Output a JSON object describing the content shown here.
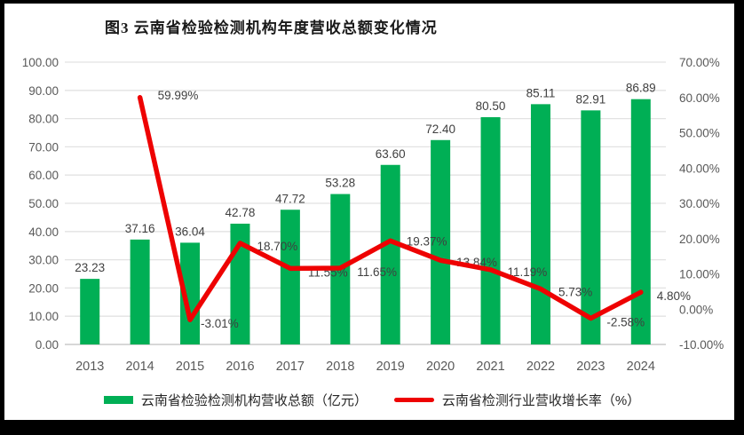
{
  "title": "图3  云南省检验检测机构年度营收总额变化情况",
  "legend": [
    {
      "swatch": "bar",
      "label": "云南省检验检测机构营收总额（亿元）"
    },
    {
      "swatch": "line",
      "label": "云南省检测行业营收增长率（%）"
    }
  ],
  "colors": {
    "bar_green": "#00AF55",
    "line_red": "#EE0202",
    "gridline": "#E2E2E2",
    "baseline": "#BFBFBF",
    "axis_text": "#595959",
    "data_label_text": "#3f3f3f",
    "frame": "#000000",
    "background": "#ffffff"
  },
  "chart_data": {
    "type": "bar",
    "subtype": "bar-line-combo",
    "title": "图3 云南省检验检测机构年度营收总额变化情况",
    "categories": [
      "2013",
      "2014",
      "2015",
      "2016",
      "2017",
      "2018",
      "2019",
      "2020",
      "2021",
      "2022",
      "2023",
      "2024"
    ],
    "series": [
      {
        "name": "云南省检验检测机构营收总额（亿元）",
        "type": "bar",
        "axis": "left",
        "values": [
          23.23,
          37.16,
          36.04,
          42.78,
          47.72,
          53.28,
          63.6,
          72.4,
          80.5,
          85.11,
          82.91,
          86.89
        ],
        "data_labels": [
          "23.23",
          "37.16",
          "36.04",
          "42.78",
          "47.72",
          "53.28",
          "63.60",
          "72.40",
          "80.50",
          "85.11",
          "82.91",
          "86.89"
        ]
      },
      {
        "name": "云南省检测行业营收增长率（%）",
        "type": "line",
        "axis": "right",
        "values": [
          null,
          59.99,
          -3.01,
          18.7,
          11.55,
          11.65,
          19.37,
          13.84,
          11.19,
          5.73,
          -2.58,
          4.8
        ],
        "data_labels": [
          null,
          "59.99%",
          "-3.01%",
          "18.70%",
          "11.55%",
          "11.65%",
          "19.37%",
          "13.84%",
          "11.19%",
          "5.73%",
          "-2.58%",
          "4.80%"
        ]
      }
    ],
    "left_axis": {
      "min": 0,
      "max": 100,
      "step": 10,
      "tick_format": "0.00",
      "ticks": [
        "0.00",
        "10.00",
        "20.00",
        "30.00",
        "40.00",
        "50.00",
        "60.00",
        "70.00",
        "80.00",
        "90.00",
        "100.00"
      ]
    },
    "right_axis": {
      "min": -10,
      "max": 70,
      "step": 10,
      "tick_format": "0.00%",
      "ticks": [
        "-10.00%",
        "0.00%",
        "10.00%",
        "20.00%",
        "30.00%",
        "40.00%",
        "50.00%",
        "60.00%",
        "70.00%"
      ]
    },
    "grid": true,
    "legend_position": "bottom"
  }
}
